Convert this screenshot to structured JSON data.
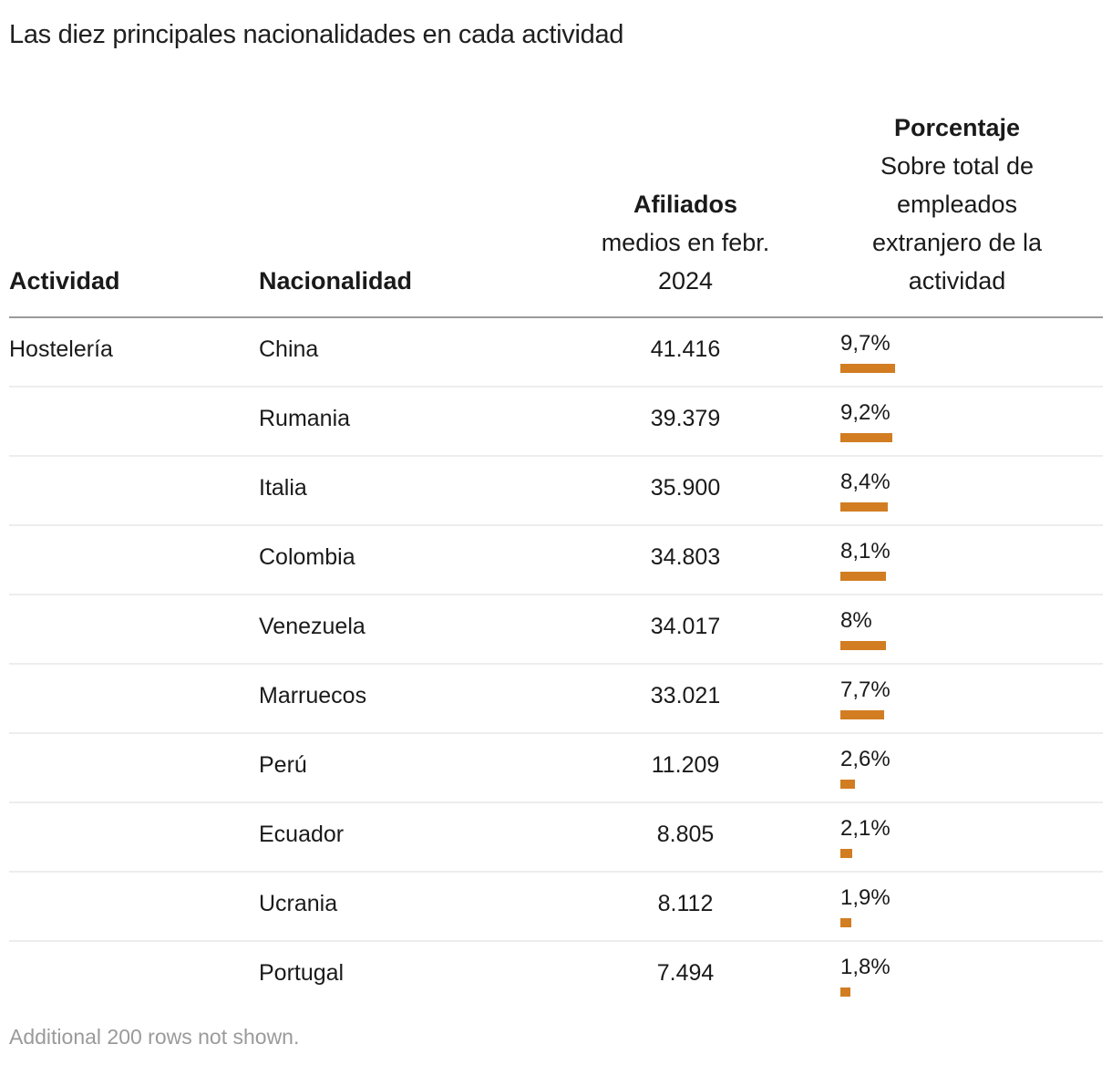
{
  "title": "Las diez principales nacionalidades en cada actividad",
  "columns": {
    "actividad": "Actividad",
    "nacionalidad": "Nacionalidad",
    "afiliados_title": "Afiliados",
    "afiliados_sub_1": "medios en febr.",
    "afiliados_sub_2": "2024",
    "porcentaje_title": "Porcentaje",
    "porcentaje_sub_1": "Sobre total de",
    "porcentaje_sub_2": "empleados",
    "porcentaje_sub_3": "extranjero de la",
    "porcentaje_sub_4": "actividad"
  },
  "bar_color": "#D27D22",
  "rows": [
    {
      "actividad": "Hostelería",
      "nacionalidad": "China",
      "afiliados": "41.416",
      "porcentaje": "9,7%",
      "pct_value": 9.7
    },
    {
      "actividad": "",
      "nacionalidad": "Rumania",
      "afiliados": "39.379",
      "porcentaje": "9,2%",
      "pct_value": 9.2
    },
    {
      "actividad": "",
      "nacionalidad": "Italia",
      "afiliados": "35.900",
      "porcentaje": "8,4%",
      "pct_value": 8.4
    },
    {
      "actividad": "",
      "nacionalidad": "Colombia",
      "afiliados": "34.803",
      "porcentaje": "8,1%",
      "pct_value": 8.1
    },
    {
      "actividad": "",
      "nacionalidad": "Venezuela",
      "afiliados": "34.017",
      "porcentaje": "8%",
      "pct_value": 8.0
    },
    {
      "actividad": "",
      "nacionalidad": "Marruecos",
      "afiliados": "33.021",
      "porcentaje": "7,7%",
      "pct_value": 7.7
    },
    {
      "actividad": "",
      "nacionalidad": "Perú",
      "afiliados": "11.209",
      "porcentaje": "2,6%",
      "pct_value": 2.6
    },
    {
      "actividad": "",
      "nacionalidad": "Ecuador",
      "afiliados": "8.805",
      "porcentaje": "2,1%",
      "pct_value": 2.1
    },
    {
      "actividad": "",
      "nacionalidad": "Ucrania",
      "afiliados": "8.112",
      "porcentaje": "1,9%",
      "pct_value": 1.9
    },
    {
      "actividad": "",
      "nacionalidad": "Portugal",
      "afiliados": "7.494",
      "porcentaje": "1,8%",
      "pct_value": 1.8
    }
  ],
  "footnote": "Additional 200 rows not shown."
}
